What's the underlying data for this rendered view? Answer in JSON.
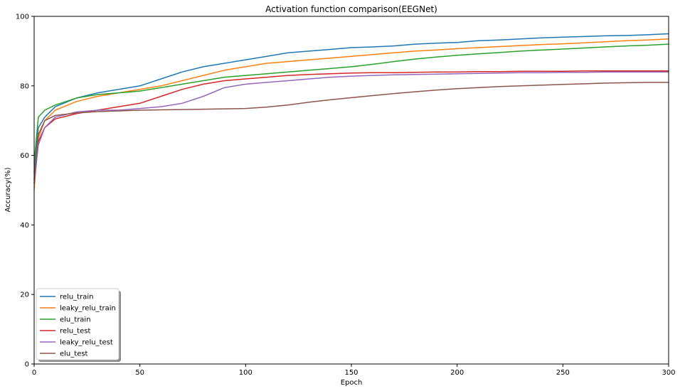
{
  "chart_data": {
    "type": "line",
    "title": "Activation function comparison(EEGNet)",
    "xlabel": "Epoch",
    "ylabel": "Accuracy(%)",
    "xlim": [
      0,
      300
    ],
    "ylim": [
      0,
      100
    ],
    "xticks": [
      0,
      50,
      100,
      150,
      200,
      250,
      300
    ],
    "yticks": [
      0,
      20,
      40,
      60,
      80,
      100
    ],
    "grid": false,
    "legend_position": "lower-left",
    "x": [
      0,
      2,
      5,
      10,
      20,
      30,
      40,
      50,
      60,
      70,
      80,
      90,
      100,
      110,
      120,
      130,
      140,
      150,
      160,
      170,
      180,
      190,
      200,
      210,
      220,
      230,
      240,
      250,
      260,
      270,
      280,
      290,
      300
    ],
    "series": [
      {
        "name": "relu_train",
        "color": "#1f77b4",
        "values": [
          55,
          68,
          71,
          74,
          76.5,
          78,
          79,
          80,
          82,
          84,
          85.5,
          86.5,
          87.5,
          88.5,
          89.5,
          90,
          90.5,
          91,
          91.2,
          91.5,
          92,
          92.3,
          92.5,
          93,
          93.2,
          93.5,
          93.8,
          94,
          94.2,
          94.4,
          94.5,
          94.7,
          95
        ]
      },
      {
        "name": "leaky_relu_train",
        "color": "#ff7f0e",
        "values": [
          50,
          65,
          70,
          73,
          75.5,
          77,
          78,
          79,
          80,
          81.5,
          83,
          84.5,
          85.5,
          86.5,
          87,
          87.5,
          88,
          88.5,
          89,
          89.5,
          90,
          90.3,
          90.7,
          91,
          91.3,
          91.6,
          91.9,
          92.1,
          92.4,
          92.7,
          93,
          93.2,
          93.5
        ]
      },
      {
        "name": "elu_train",
        "color": "#2ca02c",
        "values": [
          58,
          71,
          73,
          74.5,
          76.5,
          77.5,
          78,
          78.5,
          79.5,
          80.5,
          81.5,
          82.5,
          83,
          83.5,
          84,
          84.5,
          85,
          85.5,
          86.2,
          87,
          87.7,
          88.3,
          88.8,
          89.2,
          89.6,
          90,
          90.3,
          90.6,
          90.9,
          91.2,
          91.5,
          91.7,
          92
        ]
      },
      {
        "name": "relu_test",
        "color": "#d62728",
        "values": [
          52,
          64,
          68,
          70.5,
          72,
          73,
          74,
          75,
          77,
          79,
          80.5,
          81.5,
          82,
          82.5,
          83,
          83.3,
          83.5,
          83.7,
          83.8,
          83.8,
          83.9,
          84,
          84,
          84.1,
          84.1,
          84.2,
          84.2,
          84.2,
          84.3,
          84.3,
          84.3,
          84.3,
          84.3
        ]
      },
      {
        "name": "leaky_relu_test",
        "color": "#9467bd",
        "values": [
          52,
          63,
          68,
          71,
          72.5,
          73,
          73,
          73.5,
          74,
          75,
          77,
          79.5,
          80.5,
          81,
          81.5,
          82,
          82.5,
          82.8,
          83,
          83.2,
          83.3,
          83.4,
          83.5,
          83.6,
          83.7,
          83.8,
          83.8,
          83.9,
          83.9,
          84,
          84,
          84,
          84
        ]
      },
      {
        "name": "elu_test",
        "color": "#8c564b",
        "values": [
          53,
          66,
          70,
          71.5,
          72.2,
          72.6,
          72.8,
          73,
          73.1,
          73.2,
          73.3,
          73.4,
          73.5,
          73.9,
          74.5,
          75.3,
          76,
          76.6,
          77.2,
          77.8,
          78.3,
          78.8,
          79.2,
          79.5,
          79.8,
          80,
          80.2,
          80.4,
          80.6,
          80.8,
          80.9,
          81,
          81
        ]
      }
    ]
  }
}
